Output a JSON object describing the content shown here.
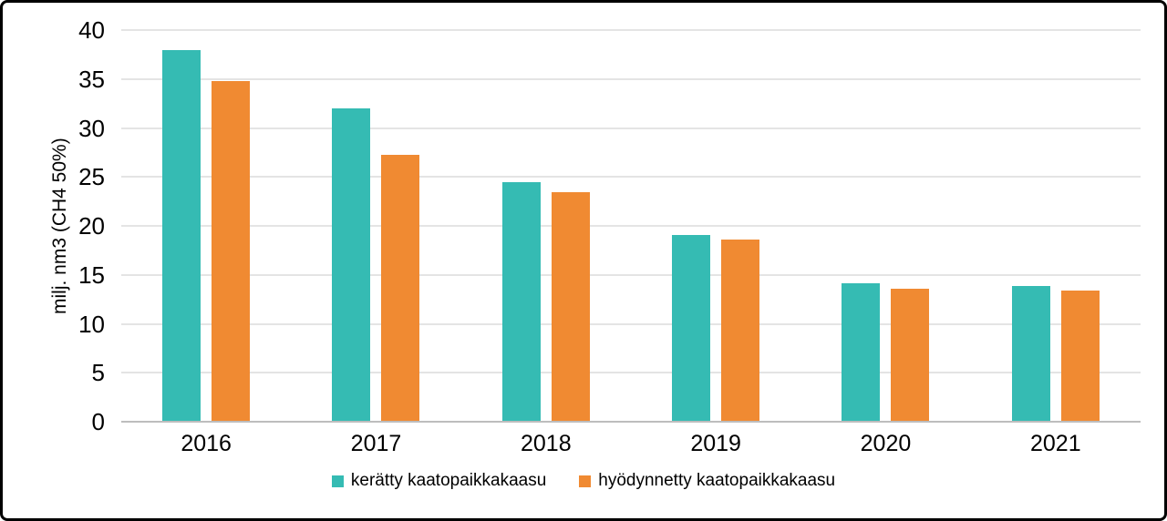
{
  "frame": {
    "background_color": "#ffffff",
    "border_color": "#000000"
  },
  "chart_data": {
    "type": "bar",
    "categories": [
      "2016",
      "2017",
      "2018",
      "2019",
      "2020",
      "2021"
    ],
    "series": [
      {
        "name": "kerätty kaatopaikkakaasu",
        "color": "#35bbb3",
        "values": [
          38.0,
          32.0,
          24.5,
          19.1,
          14.1,
          13.9
        ]
      },
      {
        "name": "hyödynnetty kaatopaikkakaasu",
        "color": "#f08a32",
        "values": [
          34.8,
          27.3,
          23.4,
          18.6,
          13.6,
          13.4
        ]
      }
    ],
    "ylabel": "milj. nm3 (CH4 50%)",
    "ylim": [
      0,
      40
    ],
    "ytick_step": 5,
    "yticks": [
      0,
      5,
      10,
      15,
      20,
      25,
      30,
      35,
      40
    ],
    "grid": true,
    "gridline_color": "#e4e4e4",
    "axis_line_color": "#bdbdbd",
    "text_color": "#000000",
    "legend_position": "bottom"
  }
}
